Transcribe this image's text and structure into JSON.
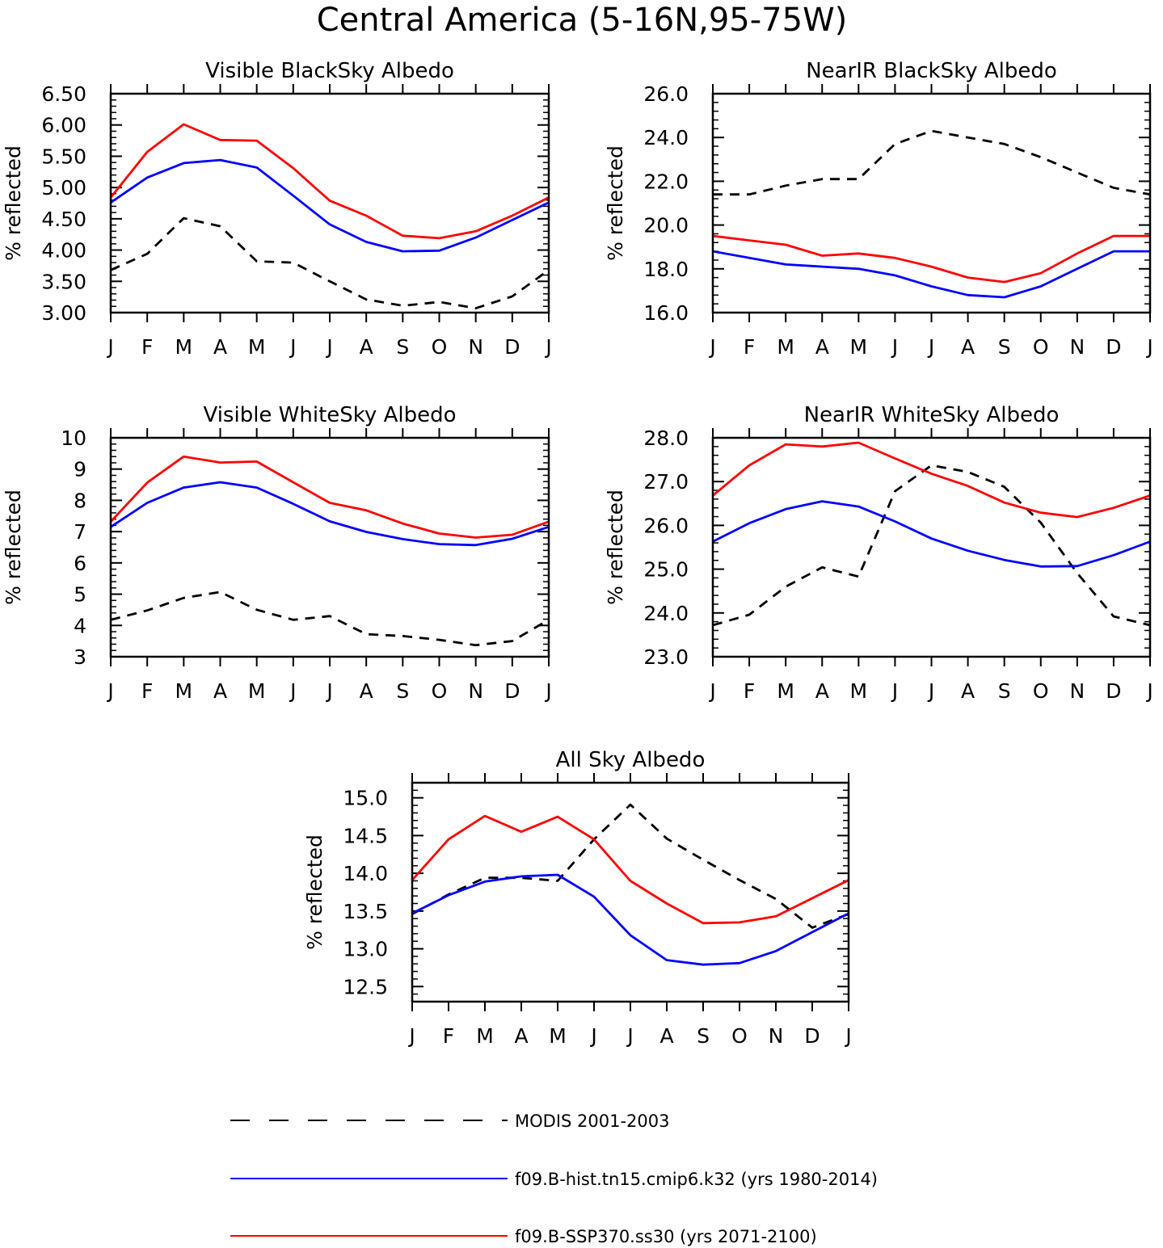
{
  "figure_title": "Central America (5-16N,95-75W)",
  "legend": [
    {
      "label": "MODIS 2001-2003",
      "color": "#000000",
      "dashed": true
    },
    {
      "label": "f09.B-hist.tn15.cmip6.k32 (yrs 1980-2014)",
      "color": "#0000ff",
      "dashed": false
    },
    {
      "label": "f09.B-SSP370.ss30 (yrs 2071-2100)",
      "color": "#ff0000",
      "dashed": false
    }
  ],
  "chart_data": [
    {
      "type": "line",
      "title": "Visible BlackSky Albedo",
      "ylabel": "% reflected",
      "xlabel": "",
      "categories": [
        "J",
        "F",
        "M",
        "A",
        "M",
        "J",
        "J",
        "A",
        "S",
        "O",
        "N",
        "D",
        "J"
      ],
      "ylim": [
        3.0,
        6.5
      ],
      "yticks": [
        "3.00",
        "3.50",
        "4.00",
        "4.50",
        "5.00",
        "5.50",
        "6.00",
        "6.50"
      ],
      "series": [
        {
          "name": "MODIS 2001-2003",
          "values": [
            3.68,
            3.94,
            4.51,
            4.38,
            3.82,
            3.8,
            3.5,
            3.21,
            3.11,
            3.17,
            3.07,
            3.26,
            3.68
          ]
        },
        {
          "name": "f09.B-hist.tn15.cmip6.k32 (yrs 1980-2014)",
          "values": [
            4.76,
            5.16,
            5.39,
            5.44,
            5.32,
            4.87,
            4.41,
            4.13,
            3.98,
            3.99,
            4.2,
            4.48,
            4.76
          ]
        },
        {
          "name": "f09.B-SSP370.ss30 (yrs 2071-2100)",
          "values": [
            4.84,
            5.57,
            6.01,
            5.76,
            5.75,
            5.31,
            4.79,
            4.55,
            4.23,
            4.19,
            4.3,
            4.55,
            4.84
          ]
        }
      ]
    },
    {
      "type": "line",
      "title": "NearIR BlackSky Albedo",
      "ylabel": "% reflected",
      "xlabel": "",
      "categories": [
        "J",
        "F",
        "M",
        "A",
        "M",
        "J",
        "J",
        "A",
        "S",
        "O",
        "N",
        "D",
        "J"
      ],
      "ylim": [
        16.0,
        26.0
      ],
      "yticks": [
        "16.0",
        "18.0",
        "20.0",
        "22.0",
        "24.0",
        "26.0"
      ],
      "series": [
        {
          "name": "MODIS 2001-2003",
          "values": [
            21.4,
            21.4,
            21.8,
            22.1,
            22.1,
            23.7,
            24.3,
            24.0,
            23.7,
            23.1,
            22.4,
            21.7,
            21.4
          ]
        },
        {
          "name": "f09.B-hist.tn15.cmip6.k32 (yrs 1980-2014)",
          "values": [
            18.8,
            18.5,
            18.2,
            18.1,
            18.0,
            17.7,
            17.2,
            16.8,
            16.7,
            17.2,
            18.0,
            18.8,
            18.8
          ]
        },
        {
          "name": "f09.B-SSP370.ss30 (yrs 2071-2100)",
          "values": [
            19.5,
            19.3,
            19.1,
            18.6,
            18.7,
            18.5,
            18.1,
            17.6,
            17.4,
            17.8,
            18.7,
            19.5,
            19.5
          ]
        }
      ]
    },
    {
      "type": "line",
      "title": "Visible WhiteSky Albedo",
      "ylabel": "% reflected",
      "xlabel": "",
      "categories": [
        "J",
        "F",
        "M",
        "A",
        "M",
        "J",
        "J",
        "A",
        "S",
        "O",
        "N",
        "D",
        "J"
      ],
      "ylim": [
        3,
        10
      ],
      "yticks": [
        "3",
        "4",
        "5",
        "6",
        "7",
        "8",
        "9",
        "10"
      ],
      "series": [
        {
          "name": "MODIS 2001-2003",
          "values": [
            4.18,
            4.48,
            4.88,
            5.07,
            4.5,
            4.18,
            4.3,
            3.72,
            3.66,
            3.54,
            3.37,
            3.5,
            4.18
          ]
        },
        {
          "name": "f09.B-hist.tn15.cmip6.k32 (yrs 1980-2014)",
          "values": [
            7.15,
            7.92,
            8.41,
            8.58,
            8.41,
            7.89,
            7.33,
            6.99,
            6.76,
            6.6,
            6.57,
            6.77,
            7.15
          ]
        },
        {
          "name": "f09.B-SSP370.ss30 (yrs 2071-2100)",
          "values": [
            7.32,
            8.57,
            9.4,
            9.21,
            9.24,
            8.58,
            7.92,
            7.68,
            7.26,
            6.94,
            6.81,
            6.9,
            7.32
          ]
        }
      ]
    },
    {
      "type": "line",
      "title": "NearIR WhiteSky Albedo",
      "ylabel": "% reflected",
      "xlabel": "",
      "categories": [
        "J",
        "F",
        "M",
        "A",
        "M",
        "J",
        "J",
        "A",
        "S",
        "O",
        "N",
        "D",
        "J"
      ],
      "ylim": [
        23.0,
        28.0
      ],
      "yticks": [
        "23.0",
        "24.0",
        "25.0",
        "26.0",
        "27.0",
        "28.0"
      ],
      "series": [
        {
          "name": "MODIS 2001-2003",
          "values": [
            23.72,
            23.96,
            24.6,
            25.04,
            24.83,
            26.78,
            27.37,
            27.22,
            26.88,
            26.06,
            24.91,
            23.92,
            23.72
          ]
        },
        {
          "name": "f09.B-hist.tn15.cmip6.k32 (yrs 1980-2014)",
          "values": [
            25.63,
            26.05,
            26.37,
            26.55,
            26.43,
            26.09,
            25.7,
            25.42,
            25.21,
            25.06,
            25.07,
            25.32,
            25.63
          ]
        },
        {
          "name": "f09.B-SSP370.ss30 (yrs 2071-2100)",
          "values": [
            26.68,
            27.37,
            27.85,
            27.8,
            27.89,
            27.53,
            27.18,
            26.9,
            26.52,
            26.29,
            26.19,
            26.4,
            26.68
          ]
        }
      ]
    },
    {
      "type": "line",
      "title": "All Sky Albedo",
      "ylabel": "% reflected",
      "xlabel": "",
      "categories": [
        "J",
        "F",
        "M",
        "A",
        "M",
        "J",
        "J",
        "A",
        "S",
        "O",
        "N",
        "D",
        "J"
      ],
      "ylim": [
        12.3,
        15.2
      ],
      "yticks": [
        "12.5",
        "13.0",
        "13.5",
        "14.0",
        "14.5",
        "15.0"
      ],
      "series": [
        {
          "name": "MODIS 2001-2003",
          "values": [
            13.46,
            13.72,
            13.94,
            13.94,
            13.9,
            14.45,
            14.91,
            14.46,
            14.18,
            13.91,
            13.66,
            13.28,
            13.46
          ]
        },
        {
          "name": "f09.B-hist.tn15.cmip6.k32 (yrs 1980-2014)",
          "values": [
            13.47,
            13.71,
            13.89,
            13.96,
            13.98,
            13.69,
            13.18,
            12.85,
            12.79,
            12.81,
            12.97,
            13.22,
            13.47
          ]
        },
        {
          "name": "f09.B-SSP370.ss30 (yrs 2071-2100)",
          "values": [
            13.91,
            14.45,
            14.76,
            14.55,
            14.75,
            14.45,
            13.9,
            13.6,
            13.34,
            13.35,
            13.43,
            13.67,
            13.91
          ]
        }
      ]
    }
  ]
}
